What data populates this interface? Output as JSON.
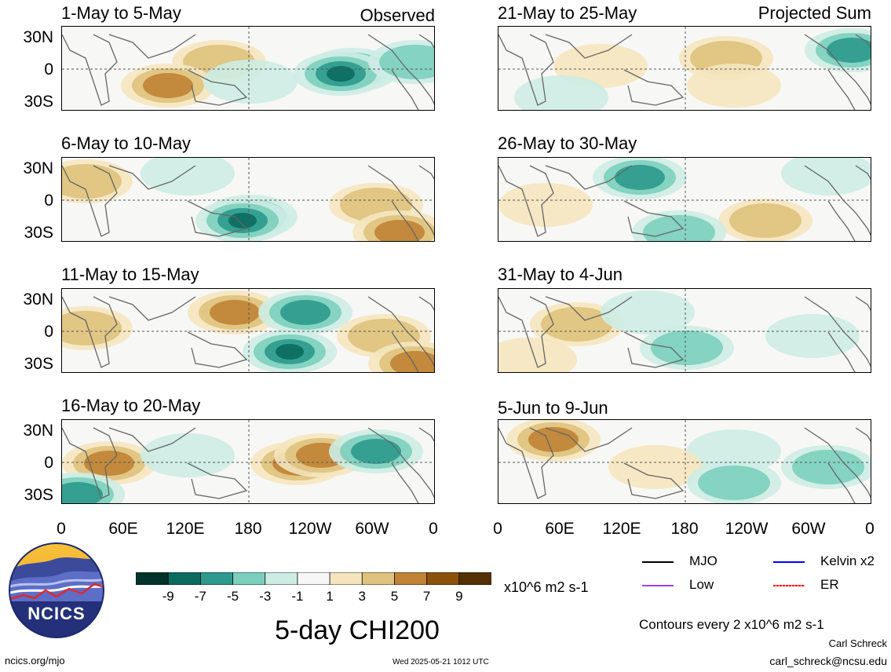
{
  "panels_left": [
    {
      "title": "1-May to 5-May",
      "tag": "Observed"
    },
    {
      "title": "6-May to 10-May",
      "tag": ""
    },
    {
      "title": "11-May to 15-May",
      "tag": ""
    },
    {
      "title": "16-May to 20-May",
      "tag": ""
    }
  ],
  "panels_right": [
    {
      "title": "21-May to 25-May",
      "tag": "Projected Sum"
    },
    {
      "title": "26-May to 30-May",
      "tag": ""
    },
    {
      "title": "31-May to 4-Jun",
      "tag": ""
    },
    {
      "title": "5-Jun to 9-Jun",
      "tag": ""
    }
  ],
  "lat_labels": [
    "30N",
    "0",
    "30S"
  ],
  "lon_labels": [
    "0",
    "60E",
    "120E",
    "180",
    "120W",
    "60W",
    "0"
  ],
  "colorbar": {
    "labels": [
      "-9",
      "-7",
      "-5",
      "-3",
      "-1",
      "1",
      "3",
      "5",
      "7",
      "9"
    ],
    "units": "x10^6 m2 s-1",
    "colors": [
      "#01332a",
      "#0b6b5f",
      "#2c9a8d",
      "#7ccfbd",
      "#cdece4",
      "#f7f7f7",
      "#f5e5bf",
      "#dfc27d",
      "#c08234",
      "#8c510a",
      "#543005"
    ]
  },
  "main_title": "5-day CHI200",
  "legend": {
    "mjo": "MJO",
    "kelvin": "Kelvin x2",
    "low": "Low",
    "er": "ER",
    "colors": {
      "mjo": "#000000",
      "kelvin": "#0000ff",
      "low": "#a040e0",
      "er": "#ff0000"
    }
  },
  "contour_note": "Contours every 2 x10^6 m2 s-1",
  "footer": {
    "left": "ncics.org/mjo",
    "center": "Wed 2025-05-21 1012 UTC",
    "author": "Carl Schreck",
    "email": "carl_schreck@ncsu.edu"
  },
  "logo_text": "NCICS"
}
